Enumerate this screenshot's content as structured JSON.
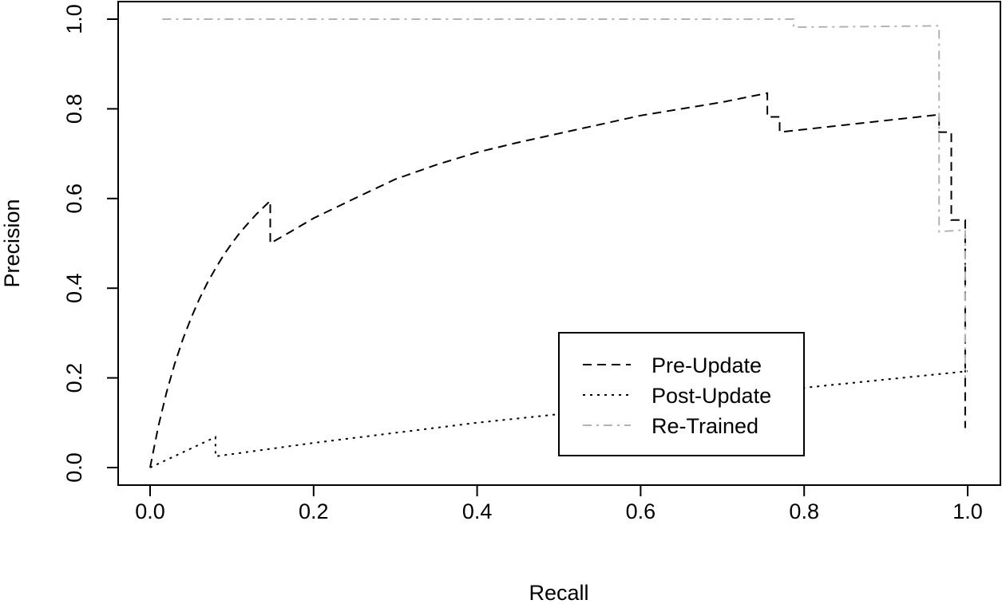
{
  "chart_data": {
    "type": "line",
    "title": "",
    "xlabel": "Recall",
    "ylabel": "Precision",
    "xlim": [
      -0.04,
      1.04
    ],
    "ylim": [
      -0.04,
      1.04
    ],
    "x_ticks": [
      0.0,
      0.2,
      0.4,
      0.6,
      0.8,
      1.0
    ],
    "x_tick_labels": [
      "0.0",
      "0.2",
      "0.4",
      "0.6",
      "0.8",
      "1.0"
    ],
    "y_ticks": [
      0.0,
      0.2,
      0.4,
      0.6,
      0.8,
      1.0
    ],
    "y_tick_labels": [
      "0.0",
      "0.2",
      "0.4",
      "0.6",
      "0.8",
      "1.0"
    ],
    "grid": false,
    "legend_position": "bottom-right",
    "series": [
      {
        "name": "Pre-Update",
        "line_style": "dashed",
        "color": "#000000",
        "points": [
          [
            0.0,
            0.0
          ],
          [
            0.01,
            0.091
          ],
          [
            0.02,
            0.167
          ],
          [
            0.03,
            0.231
          ],
          [
            0.04,
            0.286
          ],
          [
            0.05,
            0.333
          ],
          [
            0.06,
            0.375
          ],
          [
            0.07,
            0.412
          ],
          [
            0.08,
            0.444
          ],
          [
            0.09,
            0.474
          ],
          [
            0.1,
            0.5
          ],
          [
            0.11,
            0.524
          ],
          [
            0.12,
            0.545
          ],
          [
            0.13,
            0.565
          ],
          [
            0.147,
            0.595
          ],
          [
            0.147,
            0.5
          ],
          [
            0.17,
            0.524
          ],
          [
            0.2,
            0.556
          ],
          [
            0.25,
            0.6
          ],
          [
            0.3,
            0.643
          ],
          [
            0.35,
            0.675
          ],
          [
            0.4,
            0.703
          ],
          [
            0.45,
            0.725
          ],
          [
            0.5,
            0.745
          ],
          [
            0.55,
            0.765
          ],
          [
            0.6,
            0.785
          ],
          [
            0.65,
            0.8
          ],
          [
            0.7,
            0.815
          ],
          [
            0.755,
            0.835
          ],
          [
            0.755,
            0.782
          ],
          [
            0.77,
            0.782
          ],
          [
            0.77,
            0.748
          ],
          [
            0.965,
            0.787
          ],
          [
            0.965,
            0.748
          ],
          [
            0.98,
            0.748
          ],
          [
            0.98,
            0.552
          ],
          [
            0.997,
            0.552
          ],
          [
            0.997,
            0.088
          ]
        ]
      },
      {
        "name": "Post-Update",
        "line_style": "dotted",
        "color": "#000000",
        "points": [
          [
            0.0,
            0.0
          ],
          [
            0.08,
            0.068
          ],
          [
            0.08,
            0.025
          ],
          [
            0.2,
            0.055
          ],
          [
            0.4,
            0.1
          ],
          [
            0.6,
            0.138
          ],
          [
            0.8,
            0.178
          ],
          [
            1.0,
            0.215
          ]
        ]
      },
      {
        "name": "Re-Trained",
        "line_style": "dashdot",
        "color": "#b3b3b3",
        "points": [
          [
            0.015,
            1.0
          ],
          [
            0.787,
            1.0
          ],
          [
            0.787,
            0.982
          ],
          [
            0.965,
            0.985
          ],
          [
            0.965,
            0.526
          ],
          [
            0.997,
            0.53
          ],
          [
            0.997,
            0.2
          ]
        ]
      }
    ]
  }
}
